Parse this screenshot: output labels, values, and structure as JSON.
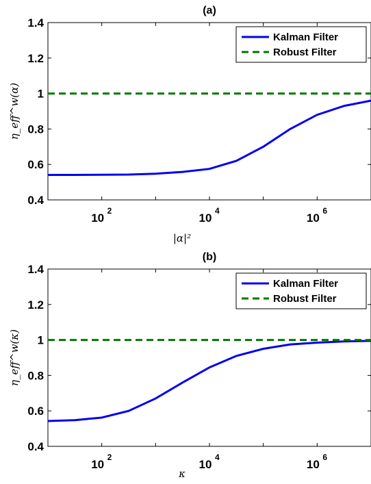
{
  "chart_data": [
    {
      "type": "line",
      "title": "(a)",
      "xlabel": "|α|²",
      "ylabel": "η_eff^w(α)",
      "x_scale": "log",
      "xlim": [
        10,
        10000000
      ],
      "ylim": [
        0.4,
        1.4
      ],
      "grid": false,
      "legend_position": "top-right",
      "x_ticks": [
        100,
        10000,
        1000000
      ],
      "x_tick_labels": [
        "10",
        "10",
        "10"
      ],
      "x_tick_exponents": [
        "2",
        "4",
        "6"
      ],
      "y_ticks": [
        0.4,
        0.6,
        0.8,
        1,
        1.2,
        1.4
      ],
      "y_tick_labels": [
        "0.4",
        "0.6",
        "0.8",
        "1",
        "1.2",
        "1.4"
      ],
      "series": [
        {
          "name": "Kalman Filter",
          "color": "#0000ee",
          "style": "solid",
          "x": [
            10,
            31.6,
            100,
            316,
            1000,
            3162,
            10000,
            31623,
            100000,
            316228,
            1000000,
            3162278,
            10000000
          ],
          "y": [
            0.541,
            0.541,
            0.542,
            0.543,
            0.548,
            0.558,
            0.575,
            0.62,
            0.7,
            0.8,
            0.88,
            0.93,
            0.96
          ]
        },
        {
          "name": "Robust Filter",
          "color": "#007700",
          "style": "dashed",
          "x": [
            10,
            10000000
          ],
          "y": [
            1.0,
            1.0
          ]
        }
      ]
    },
    {
      "type": "line",
      "title": "(b)",
      "xlabel": "κ",
      "ylabel": "η_eff^w(κ)",
      "x_scale": "log",
      "xlim": [
        10,
        10000000
      ],
      "ylim": [
        0.4,
        1.4
      ],
      "grid": false,
      "legend_position": "top-right",
      "x_ticks": [
        100,
        10000,
        1000000
      ],
      "x_tick_labels": [
        "10",
        "10",
        "10"
      ],
      "x_tick_exponents": [
        "2",
        "4",
        "6"
      ],
      "y_ticks": [
        0.4,
        0.6,
        0.8,
        1,
        1.2,
        1.4
      ],
      "y_tick_labels": [
        "0.4",
        "0.6",
        "0.8",
        "1",
        "1.2",
        "1.4"
      ],
      "series": [
        {
          "name": "Kalman Filter",
          "color": "#0000ee",
          "style": "solid",
          "x": [
            10,
            31.6,
            100,
            316,
            1000,
            3162,
            10000,
            31623,
            100000,
            316228,
            1000000,
            3162278,
            10000000
          ],
          "y": [
            0.543,
            0.548,
            0.562,
            0.6,
            0.67,
            0.76,
            0.845,
            0.91,
            0.95,
            0.975,
            0.985,
            0.992,
            0.995
          ]
        },
        {
          "name": "Robust Filter",
          "color": "#007700",
          "style": "dashed",
          "x": [
            10,
            10000000
          ],
          "y": [
            1.0,
            1.0
          ]
        }
      ]
    }
  ]
}
